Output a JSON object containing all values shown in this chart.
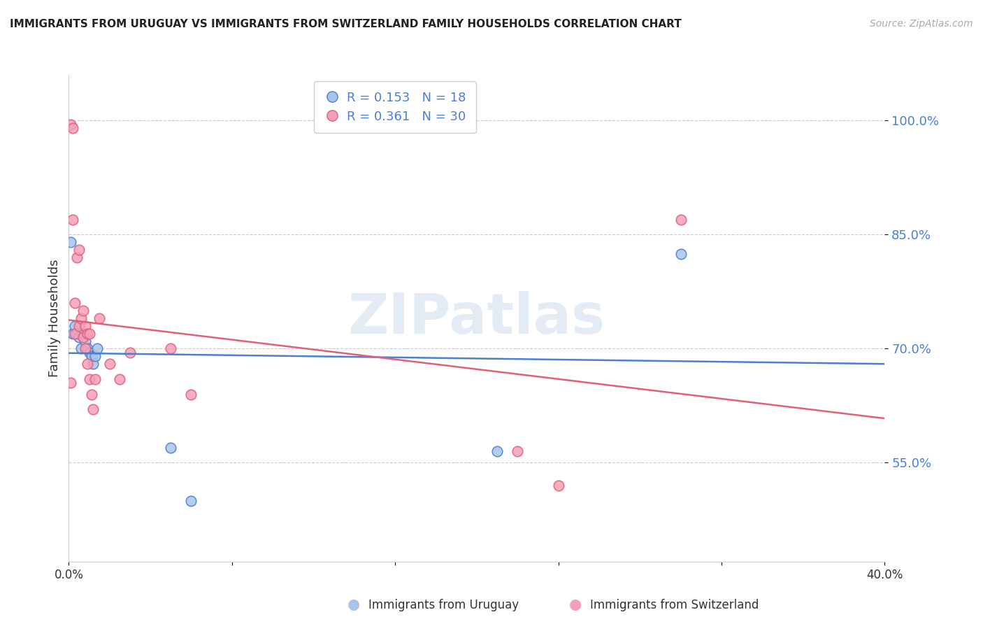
{
  "title": "IMMIGRANTS FROM URUGUAY VS IMMIGRANTS FROM SWITZERLAND FAMILY HOUSEHOLDS CORRELATION CHART",
  "source": "Source: ZipAtlas.com",
  "ylabel": "Family Households",
  "legend_labels": [
    "Immigrants from Uruguay",
    "Immigrants from Switzerland"
  ],
  "r_uruguay": 0.153,
  "n_uruguay": 18,
  "r_switzerland": 0.361,
  "n_switzerland": 30,
  "xlim": [
    0.0,
    0.4
  ],
  "ylim": [
    0.42,
    1.06
  ],
  "yticks": [
    0.55,
    0.7,
    0.85,
    1.0
  ],
  "ytick_labels": [
    "55.0%",
    "70.0%",
    "85.0%",
    "100.0%"
  ],
  "xticks": [
    0.0,
    0.08,
    0.16,
    0.24,
    0.32,
    0.4
  ],
  "xtick_labels": [
    "0.0%",
    "",
    "",
    "",
    "",
    "40.0%"
  ],
  "color_uruguay": "#a8c4e8",
  "color_switzerland": "#f4a0b8",
  "trendline_color_uruguay": "#4a7fd4",
  "trendline_color_switzerland": "#e0607a",
  "background_color": "#ffffff",
  "watermark": "ZIPatlas",
  "uruguay_x": [
    0.001,
    0.002,
    0.003,
    0.004,
    0.005,
    0.006,
    0.007,
    0.008,
    0.009,
    0.01,
    0.011,
    0.012,
    0.013,
    0.014,
    0.05,
    0.06,
    0.21,
    0.3
  ],
  "uruguay_y": [
    0.84,
    0.72,
    0.73,
    0.72,
    0.715,
    0.7,
    0.72,
    0.71,
    0.7,
    0.695,
    0.69,
    0.68,
    0.69,
    0.7,
    0.57,
    0.5,
    0.565,
    0.825
  ],
  "switzerland_x": [
    0.001,
    0.002,
    0.002,
    0.003,
    0.003,
    0.004,
    0.005,
    0.005,
    0.006,
    0.007,
    0.007,
    0.008,
    0.008,
    0.009,
    0.009,
    0.01,
    0.01,
    0.011,
    0.012,
    0.013,
    0.015,
    0.02,
    0.025,
    0.03,
    0.05,
    0.06,
    0.22,
    0.24,
    0.3,
    0.001
  ],
  "switzerland_y": [
    0.995,
    0.99,
    0.87,
    0.72,
    0.76,
    0.82,
    0.83,
    0.73,
    0.74,
    0.75,
    0.715,
    0.73,
    0.7,
    0.72,
    0.68,
    0.72,
    0.66,
    0.64,
    0.62,
    0.66,
    0.74,
    0.68,
    0.66,
    0.695,
    0.7,
    0.64,
    0.565,
    0.52,
    0.87,
    0.655
  ]
}
